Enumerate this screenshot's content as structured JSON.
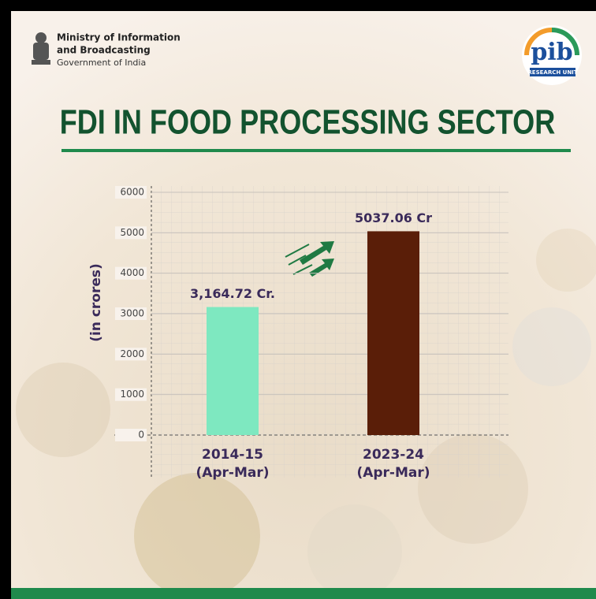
{
  "header": {
    "ministry_line1": "Ministry of Information",
    "ministry_line2": "and Broadcasting",
    "government": "Government of India",
    "logo_text": "pib",
    "logo_subtext": "RESEARCH UNIT"
  },
  "chart_data": {
    "type": "bar",
    "title": "FDI IN FOOD PROCESSING SECTOR",
    "y_label": "(in crores)",
    "categories": [
      "2014-15",
      "2023-24"
    ],
    "category_sublabels": [
      "(Apr-Mar)",
      "(Apr-Mar)"
    ],
    "values": [
      3164.72,
      5037.06
    ],
    "value_labels": [
      "3,164.72 Cr.",
      "5037.06 Cr"
    ],
    "colors": [
      "#7ee8c0",
      "#5a1e08"
    ],
    "ylim": [
      0,
      6000
    ],
    "yticks": [
      0,
      1000,
      2000,
      3000,
      4000,
      5000,
      6000
    ],
    "grid": true
  }
}
